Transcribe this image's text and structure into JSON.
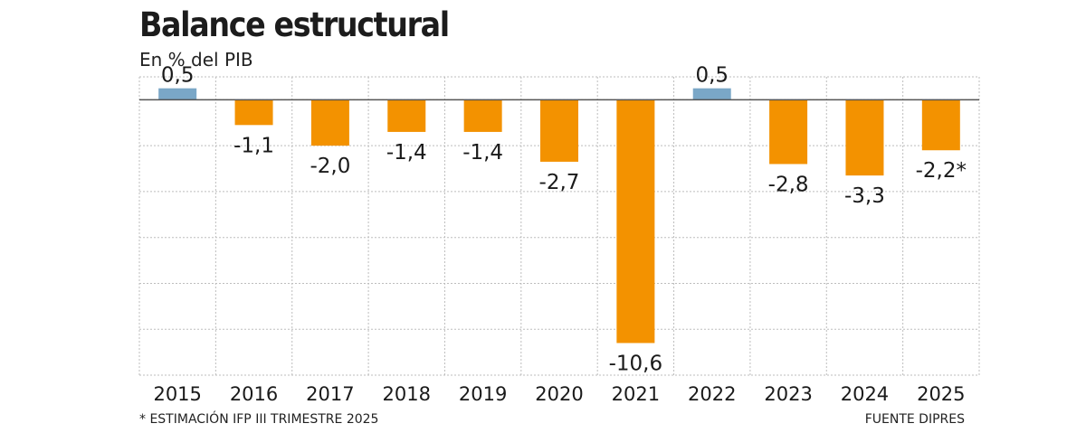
{
  "chart_data": {
    "type": "bar",
    "title": "Balance estructural",
    "subtitle": "En % del PIB",
    "categories": [
      "2015",
      "2016",
      "2017",
      "2018",
      "2019",
      "2020",
      "2021",
      "2022",
      "2023",
      "2024",
      "2025"
    ],
    "values": [
      0.5,
      -1.1,
      -2.0,
      -1.4,
      -1.4,
      -2.7,
      -10.6,
      0.5,
      -2.8,
      -3.3,
      -2.2
    ],
    "value_labels": [
      "0,5",
      "-1,1",
      "-2,0",
      "-1,4",
      "-1,4",
      "-2,7",
      "-10,6",
      "0,5",
      "-2,8",
      "-3,3",
      "-2,2*"
    ],
    "ylim": [
      -12,
      1
    ],
    "grid": true,
    "colors": {
      "positive": "#7aa7c7",
      "negative": "#f39200",
      "zero_line": "#555555",
      "grid": "#bdbdbd"
    },
    "footnote": "* ESTIMACIÓN IFP III TRIMESTRE 2025",
    "source": "FUENTE DIPRES"
  }
}
